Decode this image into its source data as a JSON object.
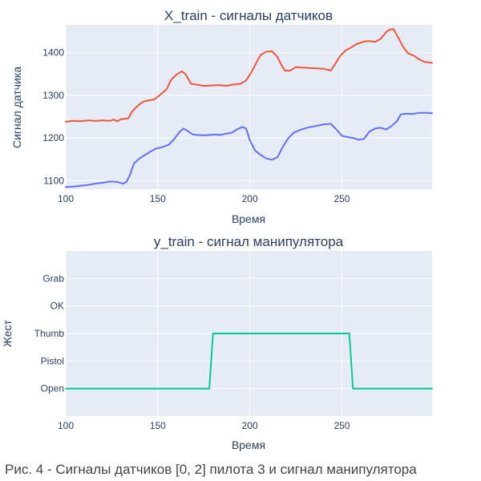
{
  "caption": "Рис. 4 - Сигналы датчиков [0, 2] пилота 3 и сигнал манипулятора",
  "colors": {
    "plot_bg": "#e5ecf6",
    "grid": "#ffffff",
    "sensor_0": "#ef553b",
    "sensor_2": "#636efa",
    "gesture": "#00cc96",
    "text": "#2a3f5f"
  },
  "chart_data": [
    {
      "type": "line",
      "title": "X_train - сигналы датчиков",
      "xlabel": "Время",
      "ylabel": "Сигнал датчика",
      "xlim": [
        100,
        299
      ],
      "ylim": [
        1080,
        1465
      ],
      "xticks": [
        100,
        150,
        200,
        250
      ],
      "yticks": [
        1100,
        1200,
        1300,
        1400
      ],
      "grid": true,
      "legend": "none",
      "series": [
        {
          "color": "#ef553b",
          "x": [
            100,
            104,
            108,
            112,
            116,
            120,
            124,
            126,
            128,
            130,
            134,
            136,
            139,
            142,
            145,
            148,
            151,
            155,
            157,
            160,
            163,
            165,
            168,
            171,
            175,
            179,
            183,
            187,
            191,
            195,
            198,
            201,
            204,
            206,
            209,
            212,
            215,
            217,
            219,
            222,
            225,
            228,
            232,
            236,
            240,
            244,
            247,
            249,
            252,
            255,
            258,
            262,
            265,
            268,
            271,
            274,
            276,
            278,
            280,
            283,
            286,
            289,
            292,
            295,
            299
          ],
          "y": [
            1238,
            1240,
            1239,
            1241,
            1240,
            1241,
            1240,
            1243,
            1239,
            1244,
            1246,
            1262,
            1275,
            1285,
            1288,
            1290,
            1300,
            1315,
            1335,
            1348,
            1356,
            1350,
            1327,
            1325,
            1322,
            1323,
            1324,
            1322,
            1325,
            1327,
            1335,
            1355,
            1380,
            1395,
            1402,
            1403,
            1390,
            1372,
            1358,
            1358,
            1366,
            1365,
            1364,
            1363,
            1362,
            1358,
            1378,
            1392,
            1405,
            1412,
            1420,
            1426,
            1427,
            1425,
            1432,
            1448,
            1454,
            1455,
            1440,
            1415,
            1398,
            1393,
            1384,
            1378,
            1376
          ]
        },
        {
          "color": "#636efa",
          "x": [
            100,
            104,
            108,
            112,
            116,
            120,
            124,
            128,
            131,
            133,
            135,
            137,
            140,
            143,
            146,
            149,
            152,
            156,
            159,
            162,
            164,
            166,
            169,
            172,
            175,
            178,
            181,
            184,
            187,
            190,
            193,
            196,
            198,
            200,
            203,
            206,
            209,
            212,
            215,
            218,
            221,
            224,
            228,
            232,
            236,
            240,
            244,
            247,
            250,
            253,
            256,
            259,
            262,
            265,
            268,
            271,
            274,
            277,
            280,
            282,
            285,
            288,
            292,
            296,
            299
          ],
          "y": [
            1085,
            1086,
            1088,
            1090,
            1093,
            1095,
            1098,
            1097,
            1093,
            1097,
            1115,
            1140,
            1152,
            1160,
            1168,
            1175,
            1178,
            1184,
            1198,
            1215,
            1222,
            1217,
            1208,
            1207,
            1206,
            1207,
            1208,
            1207,
            1210,
            1212,
            1220,
            1226,
            1222,
            1195,
            1170,
            1160,
            1152,
            1149,
            1155,
            1180,
            1200,
            1213,
            1220,
            1225,
            1228,
            1232,
            1233,
            1220,
            1205,
            1202,
            1200,
            1196,
            1198,
            1215,
            1222,
            1224,
            1220,
            1228,
            1240,
            1255,
            1257,
            1256,
            1259,
            1259,
            1258
          ]
        }
      ]
    },
    {
      "type": "line",
      "title": "y_train - сигнал манипулятора",
      "xlabel": "Время",
      "ylabel": "Жест",
      "xlim": [
        100,
        299
      ],
      "ylim": [
        -1,
        5
      ],
      "xticks": [
        100,
        150,
        200,
        250
      ],
      "categories": [
        "Open",
        "Pistol",
        "Thumb",
        "OK",
        "Grab"
      ],
      "grid": true,
      "legend": "none",
      "series": [
        {
          "color": "#00cc96",
          "x": [
            100,
            178,
            180,
            254,
            256,
            299
          ],
          "y": [
            0,
            0,
            2,
            2,
            0,
            0
          ]
        }
      ]
    }
  ]
}
